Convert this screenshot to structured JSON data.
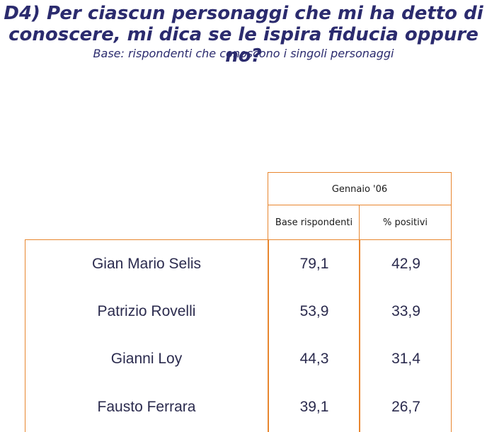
{
  "header": {
    "title_line1": "D4) Per ciascun personaggi che mi ha detto di",
    "title_line2": "conoscere, mi dica se le ispira fiducia oppure no?",
    "subtitle": "Base: rispondenti che conoscono i singoli personaggi"
  },
  "table": {
    "period": "Gennaio '06",
    "col_base": "Base rispondenti",
    "col_positive": "% positivi",
    "rows": [
      {
        "name": "Gian Mario Selis",
        "base": "79,1",
        "positive": "42,9"
      },
      {
        "name": "Patrizio Rovelli",
        "base": "53,9",
        "positive": "33,9"
      },
      {
        "name": "Gianni Loy",
        "base": "44,3",
        "positive": "31,4"
      },
      {
        "name": "Fausto Ferrara",
        "base": "39,1",
        "positive": "26,7"
      }
    ],
    "border_color": "#e8862e",
    "text_color": "#2b2b4e"
  }
}
